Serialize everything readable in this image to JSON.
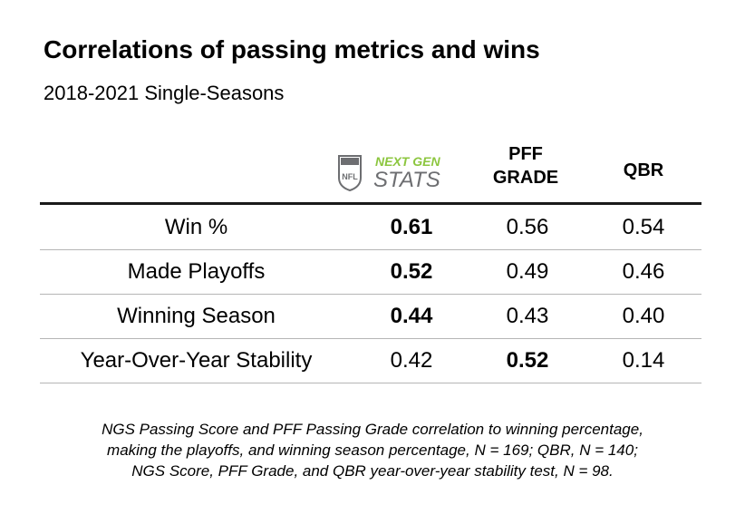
{
  "chart_data": {
    "type": "table",
    "title": "Correlations of passing metrics and wins",
    "subtitle": "2018-2021 Single-Seasons",
    "columns": [
      {
        "id": "ngs",
        "label": "NEXT GEN STATS",
        "logo_text_top": "NEXT GEN",
        "logo_text_bottom": "STATS",
        "logo_badge": "NFL"
      },
      {
        "id": "pff",
        "label": "PFF GRADE"
      },
      {
        "id": "qbr",
        "label": "QBR"
      }
    ],
    "rows": [
      {
        "metric": "Win %",
        "values": [
          "0.61",
          "0.56",
          "0.54"
        ],
        "bold_index": 0
      },
      {
        "metric": "Made Playoffs",
        "values": [
          "0.52",
          "0.49",
          "0.46"
        ],
        "bold_index": 0
      },
      {
        "metric": "Winning Season",
        "values": [
          "0.44",
          "0.43",
          "0.40"
        ],
        "bold_index": 0
      },
      {
        "metric": "Year-Over-Year Stability",
        "values": [
          "0.42",
          "0.52",
          "0.14"
        ],
        "bold_index": 1
      }
    ],
    "footnote": {
      "line1": "NGS Passing Score and PFF Passing Grade correlation to winning percentage,",
      "line2": "making the playoffs, and winning season percentage, N = 169; QBR, N = 140;",
      "line3": "NGS Score, PFF Grade, and QBR year-over-year stability test, N = 98."
    }
  },
  "colors": {
    "ngs_green": "#8cc63f",
    "ngs_gray": "#6d6e71",
    "rule": "#1a1a1a",
    "divider": "#b5b5b5"
  }
}
